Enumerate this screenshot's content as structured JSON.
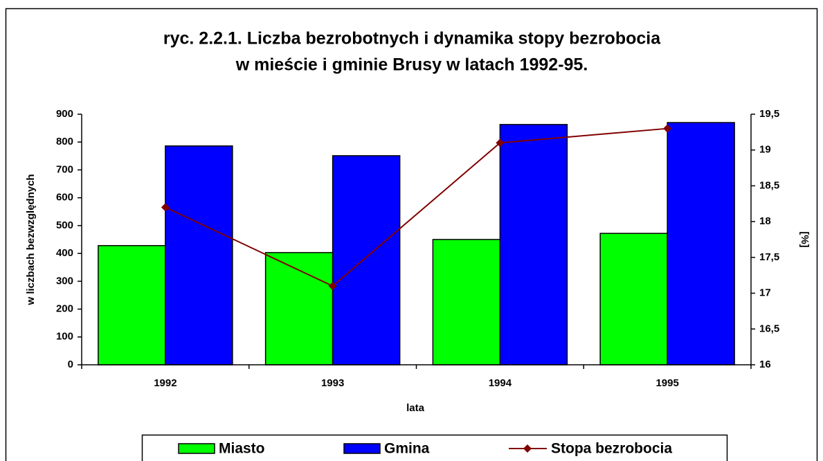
{
  "chart_data": {
    "type": "bar_line",
    "title": [
      "ryc. 2.2.1. Liczba bezrobotnych i dynamika stopy bezrobocia",
      "w mieście i gminie Brusy w latach 1992-95."
    ],
    "x_label": "lata",
    "y_label": "w liczbach bezwzględnych",
    "y2_label": "[%]",
    "categories": [
      "1992",
      "1993",
      "1994",
      "1995"
    ],
    "series": [
      {
        "name": "Miasto",
        "type": "bar",
        "color": "#00ff00",
        "values": [
          428,
          403,
          450,
          472
        ]
      },
      {
        "name": "Gmina",
        "type": "bar",
        "color": "#0000ff",
        "values": [
          786,
          751,
          863,
          870
        ]
      },
      {
        "name": "Stopa bezrobocia",
        "type": "line",
        "axis": "y2",
        "color": "#800000",
        "values": [
          18.2,
          17.1,
          19.1,
          19.3
        ]
      }
    ],
    "ylim": [
      0,
      900
    ],
    "yticks": [
      0,
      100,
      200,
      300,
      400,
      500,
      600,
      700,
      800,
      900
    ],
    "y2lim": [
      16,
      19.5
    ],
    "y2ticks": [
      16,
      {
        "value": 16.5,
        "label": "16,5"
      },
      17,
      {
        "value": 17.5,
        "label": "17,5"
      },
      18,
      {
        "value": 18.5,
        "label": "18,5"
      },
      19,
      {
        "value": 19.5,
        "label": "19,5"
      }
    ],
    "legend": "bottom"
  }
}
